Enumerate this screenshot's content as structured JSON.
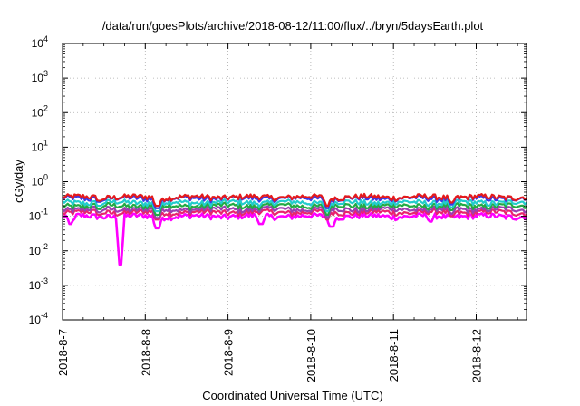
{
  "chart_data": {
    "type": "line",
    "title": "/data/run/goesPlots/archive/2018-08-12/11:00/flux/../bryn/5daysEarth.plot",
    "xlabel": "Coordinated Universal Time (UTC)",
    "ylabel": "cGy/day",
    "yscale": "log",
    "ylim": [
      0.0001,
      10000
    ],
    "xlim": [
      "2018-08-07",
      "2018-08-12 11:00"
    ],
    "grid": true,
    "x_ticks": [
      "2018-8-7",
      "2018-8-8",
      "2018-8-9",
      "2018-8-10",
      "2018-8-11",
      "2018-8-12"
    ],
    "y_ticks": [
      {
        "base": "10",
        "exp": "-4"
      },
      {
        "base": "10",
        "exp": "-3"
      },
      {
        "base": "10",
        "exp": "-2"
      },
      {
        "base": "10",
        "exp": "-1"
      },
      {
        "base": "10",
        "exp": "0"
      },
      {
        "base": "10",
        "exp": "1"
      },
      {
        "base": "10",
        "exp": "2"
      },
      {
        "base": "10",
        "exp": "3"
      },
      {
        "base": "10",
        "exp": "4"
      }
    ],
    "series": [
      {
        "color": "#e41a1c",
        "level": 0.36,
        "dips": [
          [
            0.45,
            0.28
          ],
          [
            1.15,
            0.2
          ],
          [
            3.2,
            0.2
          ],
          [
            4.7,
            0.25
          ]
        ]
      },
      {
        "color": "#3a3ae8",
        "level": 0.33,
        "dips": [
          [
            0.45,
            0.26
          ],
          [
            1.15,
            0.17
          ],
          [
            3.2,
            0.17
          ],
          [
            4.7,
            0.22
          ]
        ]
      },
      {
        "color": "#22cccc",
        "level": 0.25,
        "dips": [
          [
            0.45,
            0.2
          ],
          [
            1.15,
            0.14
          ],
          [
            3.2,
            0.14
          ],
          [
            4.7,
            0.18
          ]
        ]
      },
      {
        "color": "#22aa44",
        "level": 0.2,
        "dips": [
          [
            0.45,
            0.16
          ],
          [
            1.15,
            0.11
          ],
          [
            3.2,
            0.11
          ],
          [
            4.7,
            0.15
          ]
        ]
      },
      {
        "color": "#9a3fb0",
        "level": 0.16,
        "dips": [
          [
            0.45,
            0.13
          ],
          [
            1.15,
            0.09
          ],
          [
            3.2,
            0.09
          ],
          [
            4.7,
            0.12
          ]
        ]
      },
      {
        "color": "#e8246e",
        "level": 0.13,
        "dips": [
          [
            0.45,
            0.11
          ],
          [
            1.15,
            0.08
          ],
          [
            3.2,
            0.08
          ],
          [
            4.7,
            0.1
          ]
        ]
      },
      {
        "color": "#ff00ff",
        "level": 0.1,
        "dips": [
          [
            0.7,
            0.004
          ],
          [
            1.15,
            0.045
          ],
          [
            2.4,
            0.06
          ],
          [
            3.25,
            0.05
          ],
          [
            0.1,
            0.06
          ],
          [
            4.45,
            0.07
          ]
        ]
      }
    ]
  }
}
